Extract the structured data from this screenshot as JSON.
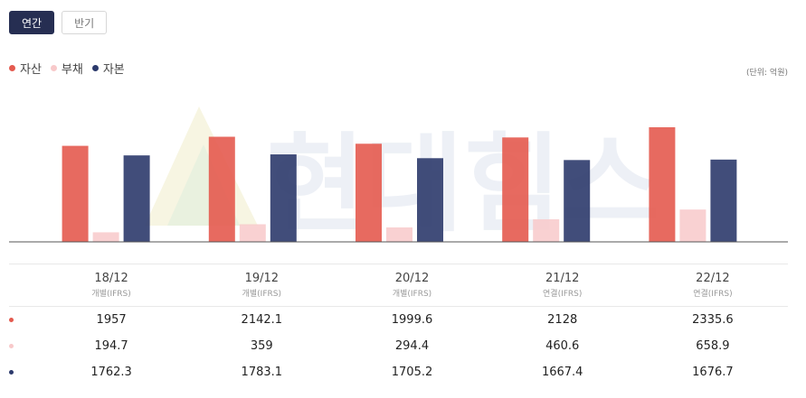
{
  "tabs": [
    {
      "label": "연간",
      "active": true
    },
    {
      "label": "반기",
      "active": false
    }
  ],
  "legend": [
    {
      "label": "자산",
      "color": "#e45a4f"
    },
    {
      "label": "부채",
      "color": "#f8c9ca"
    },
    {
      "label": "자본",
      "color": "#2c3a6c"
    }
  ],
  "unit_label": "(단위: 억원)",
  "watermark": "현대힘스",
  "chart_data": {
    "type": "bar",
    "categories": [
      "18/12",
      "19/12",
      "20/12",
      "21/12",
      "22/12"
    ],
    "series": [
      {
        "name": "자산",
        "values": [
          1957,
          2142.1,
          1999.6,
          2128,
          2335.6
        ],
        "color": "#e45a4f"
      },
      {
        "name": "부채",
        "values": [
          194.7,
          359,
          294.4,
          460.6,
          658.9
        ],
        "color": "#f8c9ca"
      },
      {
        "name": "자본",
        "values": [
          1762.3,
          1783.1,
          1705.2,
          1667.4,
          1676.7
        ],
        "color": "#2c3a6c"
      }
    ],
    "ylim": [
      0,
      2335.6
    ]
  },
  "table": {
    "columns": [
      {
        "period": "18/12",
        "basis": "개별(IFRS)"
      },
      {
        "period": "19/12",
        "basis": "개별(IFRS)"
      },
      {
        "period": "20/12",
        "basis": "개별(IFRS)"
      },
      {
        "period": "21/12",
        "basis": "연결(IFRS)"
      },
      {
        "period": "22/12",
        "basis": "연결(IFRS)"
      }
    ],
    "rows": [
      {
        "series": "자산",
        "color": "#e45a4f",
        "values": [
          "1957",
          "2142.1",
          "1999.6",
          "2128",
          "2335.6"
        ]
      },
      {
        "series": "부채",
        "color": "#f8c9ca",
        "values": [
          "194.7",
          "359",
          "294.4",
          "460.6",
          "658.9"
        ]
      },
      {
        "series": "자본",
        "color": "#2c3a6c",
        "values": [
          "1762.3",
          "1783.1",
          "1705.2",
          "1667.4",
          "1676.7"
        ]
      }
    ]
  }
}
